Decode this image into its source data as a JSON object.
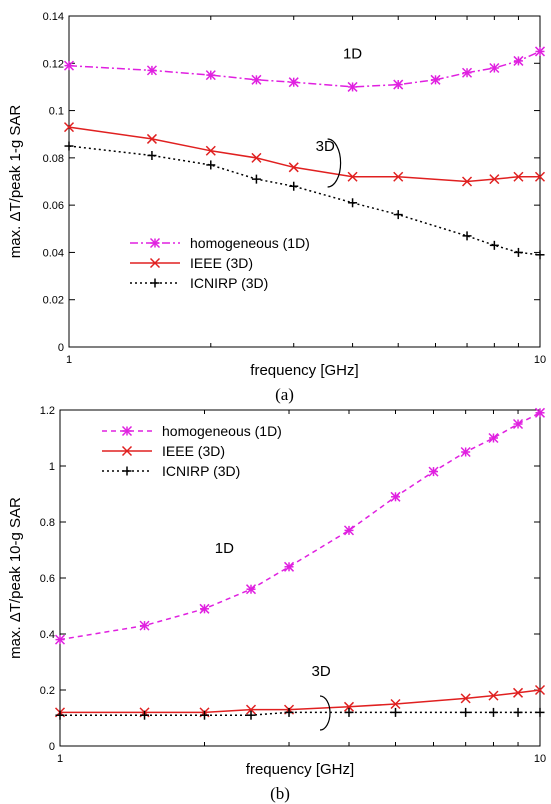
{
  "chart_data": [
    {
      "type": "line",
      "caption": "(a)",
      "xlabel": "frequency [GHz]",
      "ylabel": "max. ΔT/peak 1-g SAR",
      "xscale": "log",
      "xlim": [
        1,
        10
      ],
      "ylim": [
        0,
        0.14
      ],
      "xticks": [
        1,
        10
      ],
      "yticks": [
        0,
        0.02,
        0.04,
        0.06,
        0.08,
        0.1,
        0.12,
        0.14
      ],
      "ytick_labels": [
        "0",
        "0.02",
        "0.04",
        "0.06",
        "0.08",
        "0.1",
        "0.12",
        "0.14"
      ],
      "grid": false,
      "legend": "center-left",
      "annotations": [
        {
          "text": "1D",
          "x": 4.0,
          "y": 0.122
        },
        {
          "text": "3D",
          "x": 3.5,
          "y": 0.083
        }
      ],
      "series": [
        {
          "name": "homogeneous (1D)",
          "color": "#e020e0",
          "marker": "asterisk",
          "linestyle": "dashdot",
          "x": [
            1,
            1.5,
            2,
            2.5,
            3,
            4,
            5,
            6,
            7,
            8,
            9,
            10
          ],
          "y": [
            0.119,
            0.117,
            0.115,
            0.113,
            0.112,
            0.11,
            0.111,
            0.113,
            0.116,
            0.118,
            0.121,
            0.125
          ]
        },
        {
          "name": "IEEE (3D)",
          "color": "#e02020",
          "marker": "x",
          "linestyle": "solid",
          "x": [
            1,
            1.5,
            2,
            2.5,
            3,
            4,
            5,
            7,
            8,
            9,
            10
          ],
          "y": [
            0.093,
            0.088,
            0.083,
            0.08,
            0.076,
            0.072,
            0.072,
            0.07,
            0.071,
            0.072,
            0.072
          ]
        },
        {
          "name": "ICNIRP (3D)",
          "color": "#000000",
          "marker": "plus",
          "linestyle": "dotted",
          "x": [
            1,
            1.5,
            2,
            2.5,
            3,
            4,
            5,
            7,
            8,
            9,
            10
          ],
          "y": [
            0.085,
            0.081,
            0.077,
            0.071,
            0.068,
            0.061,
            0.056,
            0.047,
            0.043,
            0.04,
            0.039
          ]
        }
      ]
    },
    {
      "type": "line",
      "caption": "(b)",
      "xlabel": "frequency [GHz]",
      "ylabel": "max. ΔT/peak 10-g SAR",
      "xscale": "log",
      "xlim": [
        1,
        10
      ],
      "ylim": [
        0,
        1.2
      ],
      "xticks": [
        1,
        10
      ],
      "yticks": [
        0,
        0.2,
        0.4,
        0.6,
        0.8,
        1,
        1.2
      ],
      "ytick_labels": [
        "0",
        "0.2",
        "0.4",
        "0.6",
        "0.8",
        "1",
        "1.2"
      ],
      "grid": false,
      "legend": "top-left",
      "annotations": [
        {
          "text": "1D",
          "x": 2.2,
          "y": 0.69
        },
        {
          "text": "3D",
          "x": 3.5,
          "y": 0.25
        }
      ],
      "series": [
        {
          "name": "homogeneous (1D)",
          "color": "#e020e0",
          "marker": "asterisk",
          "linestyle": "dashed",
          "x": [
            1,
            1.5,
            2,
            2.5,
            3,
            4,
            5,
            6,
            7,
            8,
            9,
            10
          ],
          "y": [
            0.38,
            0.43,
            0.49,
            0.56,
            0.64,
            0.77,
            0.89,
            0.98,
            1.05,
            1.1,
            1.15,
            1.19
          ]
        },
        {
          "name": "IEEE (3D)",
          "color": "#e02020",
          "marker": "x",
          "linestyle": "solid",
          "x": [
            1,
            1.5,
            2,
            2.5,
            3,
            4,
            5,
            7,
            8,
            9,
            10
          ],
          "y": [
            0.12,
            0.12,
            0.12,
            0.13,
            0.13,
            0.14,
            0.15,
            0.17,
            0.18,
            0.19,
            0.2
          ]
        },
        {
          "name": "ICNIRP (3D)",
          "color": "#000000",
          "marker": "plus",
          "linestyle": "dotted",
          "x": [
            1,
            1.5,
            2,
            2.5,
            3,
            4,
            5,
            7,
            8,
            9,
            10
          ],
          "y": [
            0.11,
            0.11,
            0.11,
            0.11,
            0.12,
            0.12,
            0.12,
            0.12,
            0.12,
            0.12,
            0.12
          ]
        }
      ]
    }
  ]
}
